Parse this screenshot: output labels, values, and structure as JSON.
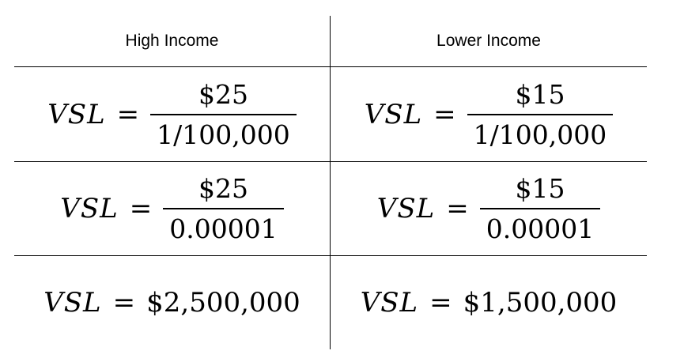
{
  "headers": {
    "left": "High Income",
    "right": "Lower Income"
  },
  "symbols": {
    "variable": "VSL",
    "equals": "="
  },
  "rows": [
    {
      "left": {
        "numerator": "$25",
        "denominator": "1/100,000"
      },
      "right": {
        "numerator": "$15",
        "denominator": "1/100,000"
      }
    },
    {
      "left": {
        "numerator": "$25",
        "denominator": "0.00001"
      },
      "right": {
        "numerator": "$15",
        "denominator": "0.00001"
      }
    },
    {
      "left": {
        "value": "$2,500,000"
      },
      "right": {
        "value": "$1,500,000"
      }
    }
  ]
}
